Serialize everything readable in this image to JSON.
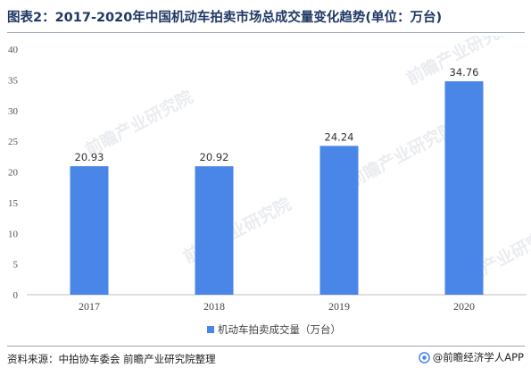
{
  "title": "图表2：2017-2020年中国机动车拍卖市场总成交量变化趋势(单位：万台)",
  "source": "资料来源：中拍协车委会 前瞻产业研究院整理",
  "brand": "@前瞻经济学人APP",
  "watermark": "前瞻产业研究院",
  "colors": {
    "bar": "#4a86e8",
    "axis": "#bfbfbf",
    "title": "#1f3864"
  },
  "chart_data": {
    "type": "bar",
    "categories": [
      "2017",
      "2018",
      "2019",
      "2020"
    ],
    "series": [
      {
        "name": "机动车拍卖成交量（万台）",
        "values": [
          20.93,
          20.92,
          24.24,
          34.76
        ]
      }
    ],
    "data_labels": [
      "20.93",
      "20.92",
      "24.24",
      "34.76"
    ],
    "ylim": [
      0,
      40
    ],
    "yticks": [
      "0",
      "5",
      "10",
      "15",
      "20",
      "25",
      "30",
      "35",
      "40"
    ],
    "grid": false,
    "legend_position": "bottom"
  }
}
